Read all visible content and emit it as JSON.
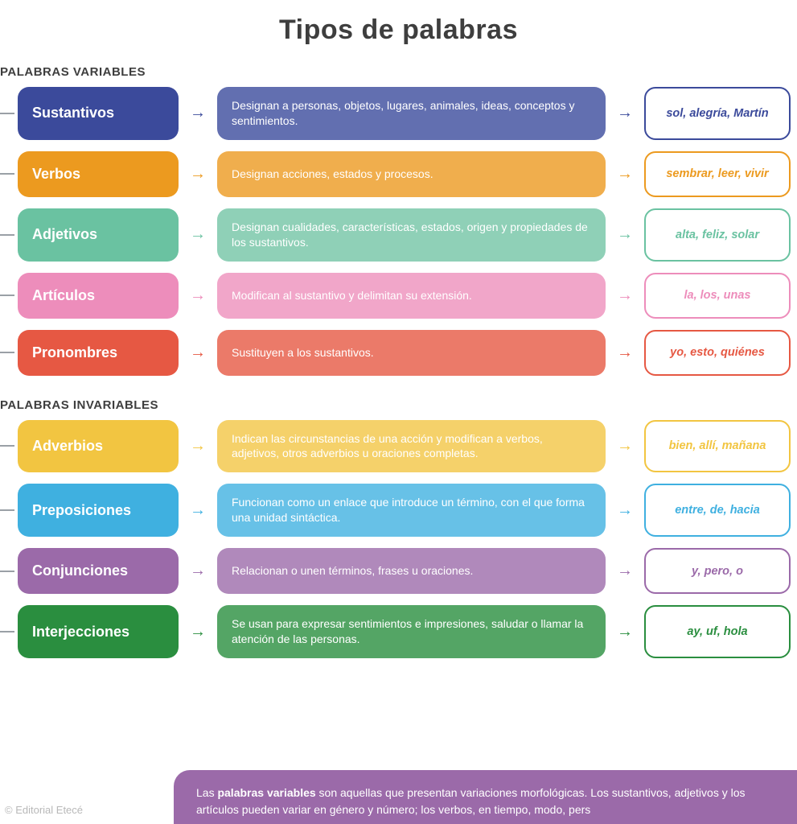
{
  "title": "Tipos de palabras",
  "copyright": "© Editorial Etecé",
  "footer_html": "Las <b>palabras variables</b> son aquellas que presentan variaciones morfológicas. Los sustantivos, adjetivos y los artículos pueden variar en género y número; los verbos, en tiempo, modo, pers",
  "footer_bg": "#9b6aa9",
  "sections": [
    {
      "header": "PALABRAS VARIABLES",
      "rows": [
        {
          "label": "Sustantivos",
          "label_bg": "#3b4a9b",
          "desc": "Designan a personas, objetos, lugares, animales, ideas, conceptos y sentimientos.",
          "desc_bg": "#626fb0",
          "example": "sol, alegría, Martín",
          "accent": "#3b4a9b"
        },
        {
          "label": "Verbos",
          "label_bg": "#ec9a1f",
          "desc": "Designan acciones, estados y procesos.",
          "desc_bg": "#f0ae4d",
          "example": "sembrar, leer, vivir",
          "accent": "#ec9a1f"
        },
        {
          "label": "Adjetivos",
          "label_bg": "#6ac2a1",
          "desc": "Designan cualidades, características, estados, origen y propiedades de los sustantivos.",
          "desc_bg": "#8fd0b7",
          "example": "alta, feliz, solar",
          "accent": "#6ac2a1"
        },
        {
          "label": "Artículos",
          "label_bg": "#ed8dbb",
          "desc": "Modifican al sustantivo y delimitan su extensión.",
          "desc_bg": "#f1a6c9",
          "example": "la, los, unas",
          "accent": "#ed8dbb"
        },
        {
          "label": "Pronombres",
          "label_bg": "#e65843",
          "desc": "Sustituyen a los sustantivos.",
          "desc_bg": "#eb7a69",
          "example": "yo, esto, quiénes",
          "accent": "#e65843"
        }
      ]
    },
    {
      "header": "PALABRAS INVARIABLES",
      "rows": [
        {
          "label": "Adverbios",
          "label_bg": "#f2c541",
          "desc": "Indican las circunstancias de una acción y modifican a verbos, adjetivos, otros adverbios u oraciones completas.",
          "desc_bg": "#f5d16a",
          "example": "bien, allí, mañana",
          "accent": "#f2c541"
        },
        {
          "label": "Preposiciones",
          "label_bg": "#3fb0e0",
          "desc": "Funcionan como un enlace que introduce un término, con el que forma una unidad sintáctica.",
          "desc_bg": "#67c1e7",
          "example": "entre, de, hacia",
          "accent": "#3fb0e0"
        },
        {
          "label": "Conjunciones",
          "label_bg": "#9b6aa9",
          "desc": "Relacionan o unen términos, frases u oraciones.",
          "desc_bg": "#b089bb",
          "example": "y, pero, o",
          "accent": "#9b6aa9"
        },
        {
          "label": "Interjecciones",
          "label_bg": "#2a8e3f",
          "desc": "Se usan para expresar sentimientos e impresiones, saludar o llamar la atención de las personas.",
          "desc_bg": "#54a565",
          "example": "ay, uf, hola",
          "accent": "#2a8e3f"
        }
      ]
    }
  ]
}
